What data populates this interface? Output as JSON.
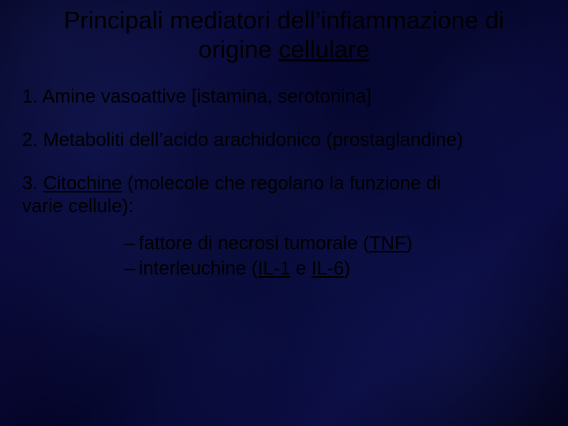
{
  "title_line1": "Principali mediatori dell’infiammazione di",
  "title_line2a": "origine ",
  "title_line2b": "cellulare",
  "items": [
    "1. Amine vasoattive [istamina, serotonina]",
    "2. Metaboliti dell’acido arachidonico (prostaglandine)"
  ],
  "item3_prefix": "3. ",
  "item3_word": "Citochine",
  "item3_rest1": " (molecole che regolano la funzione di",
  "item3_rest2": "varie cellule):",
  "sub1_a": "fattore di necrosi tumorale (",
  "sub1_b": "TNF",
  "sub1_c": ")",
  "sub2_a": "interleuchine (",
  "sub2_b": "IL-1",
  "sub2_c": " e ",
  "sub2_d": "IL-6",
  "sub2_e": ")",
  "dash": "– "
}
